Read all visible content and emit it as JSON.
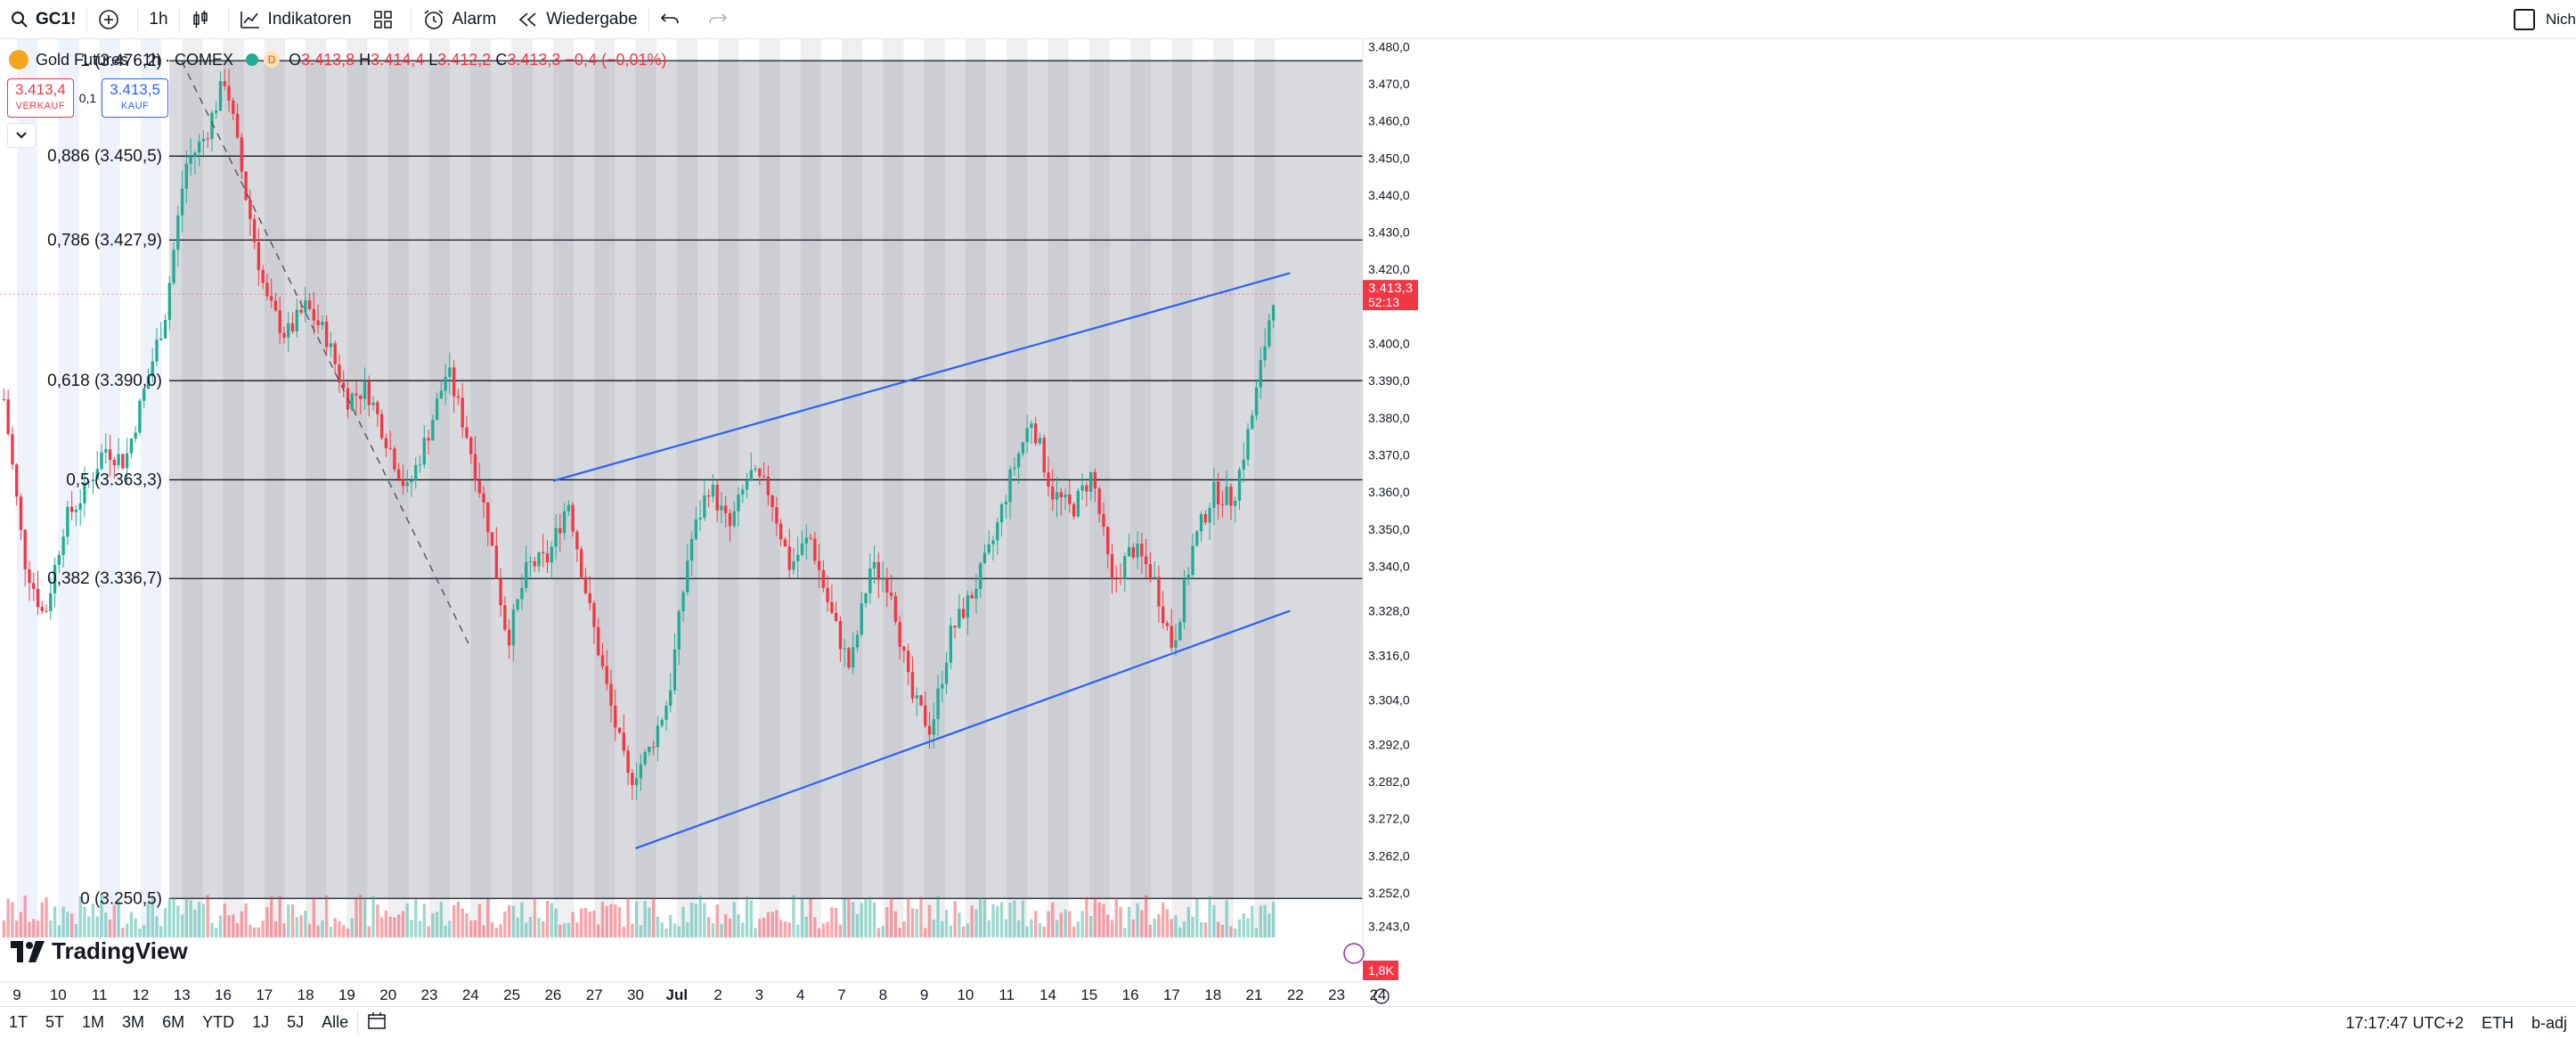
{
  "toolbar": {
    "symbol": "GC1!",
    "interval": "1h",
    "indicators": "Indikatoren",
    "alert": "Alarm",
    "replay": "Wiedergabe",
    "right_label": "Nich"
  },
  "legend": {
    "title": "Gold Futures · 1h · COMEX",
    "badge": "D",
    "o_label": "O",
    "o": "3.413,8",
    "h_label": "H",
    "h": "3.414,4",
    "l_label": "L",
    "l": "3.412,2",
    "c_label": "C",
    "c": "3.413,3",
    "change": "−0,4 (−0,01%)"
  },
  "quotes": {
    "sell_price": "3.413,4",
    "sell_label": "VERKAUF",
    "spread": "0,1",
    "buy_price": "3.413,5",
    "buy_label": "KAUF"
  },
  "watermark": "TradingView",
  "bottombar": {
    "ranges": [
      "1T",
      "5T",
      "1M",
      "3M",
      "6M",
      "YTD",
      "1J",
      "5J",
      "Alle"
    ],
    "time": "17:17:47 UTC+2",
    "session": "ETH",
    "adj": "b-adj"
  },
  "colors": {
    "up": "#22ab94",
    "down": "#f23645",
    "trend": "#2962ff",
    "fib_fill": "#787b86",
    "price_tag": "#f23645"
  },
  "chart_data": {
    "type": "candlestick",
    "symbol": "GC1!",
    "interval": "1h",
    "ylim": [
      3240,
      3482
    ],
    "y_ticks": [
      "3.243,0",
      "3.252,0",
      "3.262,0",
      "3.272,0",
      "3.282,0",
      "3.292,0",
      "3.304,0",
      "3.316,0",
      "3.328,0",
      "3.340,0",
      "3.350,0",
      "3.360,0",
      "3.370,0",
      "3.380,0",
      "3.390,0",
      "3.400,0",
      "3.420,0",
      "3.430,0",
      "3.440,0",
      "3.450,0",
      "3.460,0",
      "3.470,0",
      "3.480,0"
    ],
    "x_labels": [
      "9",
      "10",
      "11",
      "12",
      "13",
      "16",
      "17",
      "18",
      "19",
      "20",
      "23",
      "24",
      "25",
      "26",
      "27",
      "30",
      "Jul",
      "2",
      "3",
      "4",
      "7",
      "8",
      "9",
      "10",
      "11",
      "14",
      "15",
      "16",
      "17",
      "18",
      "21",
      "22",
      "23",
      "24"
    ],
    "close_path": [
      {
        "d": "9",
        "v": 3385
      },
      {
        "d": "9",
        "v": 3342
      },
      {
        "d": "10",
        "v": 3326
      },
      {
        "d": "10",
        "v": 3352
      },
      {
        "d": "11",
        "v": 3360
      },
      {
        "d": "11",
        "v": 3372
      },
      {
        "d": "12",
        "v": 3368
      },
      {
        "d": "12",
        "v": 3388
      },
      {
        "d": "13",
        "v": 3408
      },
      {
        "d": "13",
        "v": 3448
      },
      {
        "d": "13",
        "v": 3456
      },
      {
        "d": "16",
        "v": 3472
      },
      {
        "d": "16",
        "v": 3440
      },
      {
        "d": "17",
        "v": 3412
      },
      {
        "d": "17",
        "v": 3402
      },
      {
        "d": "18",
        "v": 3410
      },
      {
        "d": "18",
        "v": 3402
      },
      {
        "d": "19",
        "v": 3385
      },
      {
        "d": "19",
        "v": 3388
      },
      {
        "d": "20",
        "v": 3374
      },
      {
        "d": "20",
        "v": 3360
      },
      {
        "d": "23",
        "v": 3375
      },
      {
        "d": "23",
        "v": 3393
      },
      {
        "d": "24",
        "v": 3375
      },
      {
        "d": "24",
        "v": 3352
      },
      {
        "d": "25",
        "v": 3320
      },
      {
        "d": "25",
        "v": 3340
      },
      {
        "d": "26",
        "v": 3342
      },
      {
        "d": "26",
        "v": 3358
      },
      {
        "d": "27",
        "v": 3330
      },
      {
        "d": "27",
        "v": 3305
      },
      {
        "d": "30",
        "v": 3282
      },
      {
        "d": "30",
        "v": 3290
      },
      {
        "d": "Jul",
        "v": 3305
      },
      {
        "d": "Jul",
        "v": 3345
      },
      {
        "d": "2",
        "v": 3362
      },
      {
        "d": "2",
        "v": 3350
      },
      {
        "d": "3",
        "v": 3365
      },
      {
        "d": "3",
        "v": 3360
      },
      {
        "d": "4",
        "v": 3340
      },
      {
        "d": "4",
        "v": 3348
      },
      {
        "d": "7",
        "v": 3328
      },
      {
        "d": "7",
        "v": 3312
      },
      {
        "d": "8",
        "v": 3340
      },
      {
        "d": "8",
        "v": 3335
      },
      {
        "d": "9",
        "v": 3305
      },
      {
        "d": "9",
        "v": 3296
      },
      {
        "d": "10",
        "v": 3322
      },
      {
        "d": "10",
        "v": 3332
      },
      {
        "d": "11",
        "v": 3345
      },
      {
        "d": "11",
        "v": 3365
      },
      {
        "d": "14",
        "v": 3380
      },
      {
        "d": "14",
        "v": 3360
      },
      {
        "d": "15",
        "v": 3355
      },
      {
        "d": "15",
        "v": 3365
      },
      {
        "d": "16",
        "v": 3335
      },
      {
        "d": "16",
        "v": 3345
      },
      {
        "d": "17",
        "v": 3338
      },
      {
        "d": "17",
        "v": 3318
      },
      {
        "d": "18",
        "v": 3345
      },
      {
        "d": "18",
        "v": 3360
      },
      {
        "d": "21",
        "v": 3358
      },
      {
        "d": "21",
        "v": 3382
      },
      {
        "d": "21",
        "v": 3413.3
      }
    ],
    "fibonacci": [
      {
        "label": "1 (3.476,2)",
        "value": 3476.2
      },
      {
        "label": "0,886 (3.450,5)",
        "value": 3450.5
      },
      {
        "label": "0,786 (3.427,9)",
        "value": 3427.9
      },
      {
        "label": "0,618 (3.390,0)",
        "value": 3390.0
      },
      {
        "label": "0,5 (3.363,3)",
        "value": 3363.3
      },
      {
        "label": "0,382 (3.336,7)",
        "value": 3336.7
      },
      {
        "label": "0 (3.250,5)",
        "value": 3250.5
      }
    ],
    "trendlines": [
      {
        "name": "upper-channel",
        "from": {
          "d": "26",
          "v": 3363
        },
        "to": {
          "d": "22",
          "v": 3419
        }
      },
      {
        "name": "lower-channel",
        "from": {
          "d": "30",
          "v": 3264
        },
        "to": {
          "d": "22",
          "v": 3328
        }
      },
      {
        "name": "dashed-downtrend",
        "from": {
          "d": "13",
          "v": 3476
        },
        "to": {
          "d": "24",
          "v": 3318
        }
      }
    ],
    "last_price": {
      "value": 3413.3,
      "label": "3.413,3",
      "countdown": "52:13"
    },
    "volume_label": "1,8K",
    "grid": true
  }
}
